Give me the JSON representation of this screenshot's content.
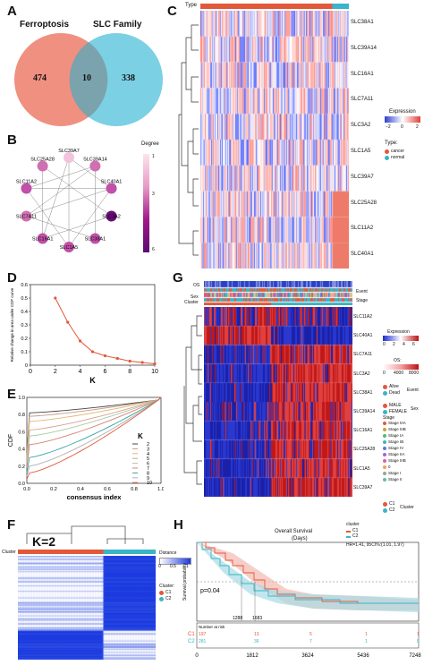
{
  "panels": {
    "A": {
      "label": "A",
      "left_title": "Ferroptosis",
      "right_title": "SLC Family",
      "left_only": "474",
      "overlap": "10",
      "right_only": "338",
      "left_color": "#ef8a7a",
      "right_color": "#6ecbe0"
    },
    "B": {
      "label": "B",
      "legend_title": "Degree",
      "legend_ticks": [
        "1",
        "3",
        "6"
      ],
      "nodes": [
        "SLC39A7",
        "SLC39A14",
        "SLC40A1",
        "SLC3A2",
        "SLC38A1",
        "SLC1A5",
        "SLC16A1",
        "SLC7A11",
        "SLC11A2",
        "SLC25A28"
      ]
    },
    "C": {
      "label": "C",
      "type_label": "Type",
      "genes": [
        "SLC38A1",
        "SLC39A14",
        "SLC16A1",
        "SLC7A11",
        "SLC3A2",
        "SLC1A5",
        "SLC39A7",
        "SLC25A28",
        "SLC11A2",
        "SLC40A1"
      ],
      "legend_expression": "Expression",
      "expression_ticks": [
        "−2",
        "0",
        "2"
      ],
      "legend_type": "Type:",
      "type_items": [
        {
          "label": "cancer",
          "color": "#e2593a"
        },
        {
          "label": "normal",
          "color": "#3ab4c8"
        }
      ]
    },
    "D": {
      "label": "D",
      "ylabel": "Relative change in area under CDF curve",
      "xlabel": "K"
    },
    "E": {
      "label": "E",
      "ylabel": "CDF",
      "xlabel": "consensus index",
      "legend_title": "K",
      "legend_items": [
        "2",
        "3",
        "4",
        "5",
        "6",
        "7",
        "8",
        "9",
        "10"
      ]
    },
    "F": {
      "label": "F",
      "k_label": "K=2",
      "cluster_label": "Cluster",
      "distance_label": "Distance",
      "distance_ticks": [
        "0",
        "0.5",
        "1"
      ],
      "cluster_legend_title": "Cluster:",
      "cluster_items": [
        {
          "label": "C1",
          "color": "#e2593a"
        },
        {
          "label": "C2",
          "color": "#3ab4c8"
        }
      ]
    },
    "G": {
      "label": "G",
      "track_labels": [
        "OS",
        "Sex",
        "Cluster"
      ],
      "track_labels_right": [
        "Event",
        "Stage"
      ],
      "genes": [
        "SLC11A2",
        "SLC40A1",
        "SLC7A11",
        "SLC3A2",
        "SLC38A1",
        "SLC39A14",
        "SLC16A1",
        "SLC25A28",
        "SLC1A5",
        "SLC39A7"
      ],
      "legend_expression": "Expression",
      "expression_ticks": [
        "0",
        "2",
        "4",
        "6"
      ],
      "legend_os": "OS:",
      "os_ticks": [
        "0",
        "4000",
        "8000"
      ],
      "event_items": [
        "Alive",
        "Dead"
      ],
      "event_title": "Event",
      "sex_items": [
        "MALE",
        "FEMALE"
      ],
      "sex_title": "Sex",
      "stage_title": "Stage",
      "stage_items": [
        "Stage IIIA",
        "Stage IIIB",
        "Stage IA",
        "Stage IB",
        "Stage IV",
        "Stage IIA",
        "Stage IIIB",
        "0",
        "Stage I",
        "Stage II"
      ],
      "cluster_items": [
        "C1",
        "C2"
      ],
      "cluster_title": "Cluster"
    },
    "H": {
      "label": "H",
      "legend_title": "cluster",
      "legend_items": [
        "C1",
        "C2"
      ],
      "plot_title": "Overall Survival",
      "plot_subtitle": "(Days)",
      "hr_text": "HR=1.41, 95CI%:(1.01, 1.97)",
      "pvalue": "p=0.04",
      "ylabel": "Survival probability",
      "median_labels": [
        "1288",
        "1683"
      ],
      "x_ticks": [
        "0",
        "1812",
        "3624",
        "5436",
        "7248"
      ],
      "risk_title": "Number at risk",
      "risk_rows": [
        {
          "label": "C1",
          "values": [
            "197",
            "13",
            "5",
            "1",
            "1"
          ]
        },
        {
          "label": "C2",
          "values": [
            "281",
            "36",
            "7",
            "1",
            "0"
          ]
        }
      ]
    }
  },
  "chart_data": [
    {
      "type": "line",
      "panel": "D",
      "xlabel": "K",
      "ylabel": "Relative change in area under CDF curve",
      "x": [
        2,
        3,
        4,
        5,
        6,
        7,
        8,
        9,
        10
      ],
      "values": [
        0.5,
        0.32,
        0.18,
        0.1,
        0.07,
        0.05,
        0.03,
        0.02,
        0.01
      ],
      "xlim": [
        0,
        10
      ],
      "ylim": [
        0,
        0.6
      ],
      "x_ticks": [
        0,
        2,
        4,
        6,
        8,
        10
      ],
      "y_ticks": [
        0.0,
        0.1,
        0.2,
        0.3,
        0.4,
        0.5,
        0.6
      ],
      "color": "#e2593a"
    },
    {
      "type": "line",
      "panel": "E",
      "xlabel": "consensus index",
      "ylabel": "CDF",
      "xlim": [
        0,
        1
      ],
      "ylim": [
        0,
        1
      ],
      "x_ticks": [
        0.0,
        0.2,
        0.4,
        0.6,
        0.8,
        1.0
      ],
      "y_ticks": [
        0.0,
        0.2,
        0.4,
        0.6,
        0.8,
        1.0
      ]
    }
  ]
}
